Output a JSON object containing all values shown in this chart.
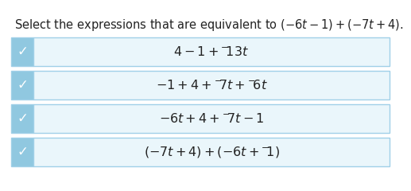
{
  "title": "Select the expressions that are equivalent to (⁻6t – 1) + (⁻7t + 4).",
  "title_fontsize": 10.5,
  "option_texts": [
    "4 – 1 + ⁻13t",
    "ⁱ1 + 4 + ⁻7t + ⁻6t",
    "ⁱ6t + 4 + ⁻7t – 1",
    "(⁻7t + 4) + (⁻6t + ⁻1)"
  ],
  "checked": [
    true,
    true,
    true,
    true
  ],
  "box_bg": "#d6eff8",
  "box_border": "#a0d0e8",
  "box_bg_main": "#eaf6fb",
  "check_color": "#5599cc",
  "check_bg": "#90c8e0",
  "checkmark_color": "#ffffff",
  "text_color": "#222222",
  "bg_color": "#ffffff",
  "fontsize": 11.5,
  "title_color": "#222222"
}
